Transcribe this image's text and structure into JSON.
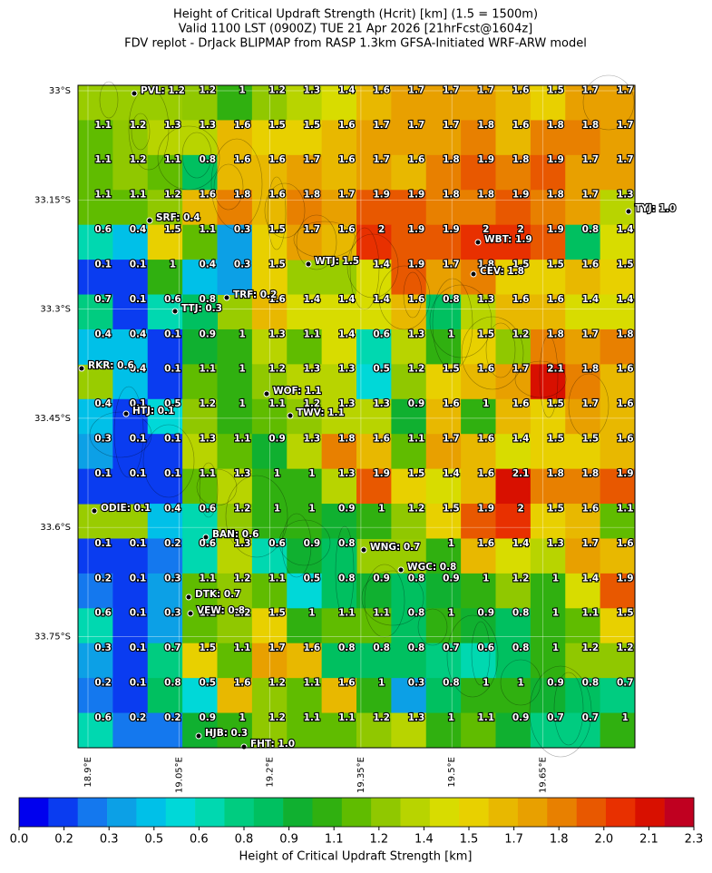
{
  "title_lines": [
    "Height of Critical Updraft Strength (Hcrit) [km] (1.5 = 1500m)",
    "Valid 1100 LST (0900Z) TUE 21 Apr 2026 [21hrFcst@1604z]",
    "FDV replot - DrJack BLIPMAP from RASP 1.3km GFSA-Initiated WRF-ARW model"
  ],
  "grid": [
    [
      null,
      null,
      null,
      1.2,
      1.0,
      1.2,
      1.3,
      1.4,
      1.6,
      1.7,
      1.7,
      1.7,
      1.6,
      1.5,
      1.7,
      1.7
    ],
    [
      1.1,
      1.2,
      1.3,
      1.3,
      1.6,
      1.5,
      1.5,
      1.6,
      1.7,
      1.7,
      1.7,
      1.8,
      1.6,
      1.8,
      1.8,
      1.7
    ],
    [
      1.1,
      1.2,
      1.1,
      0.8,
      1.6,
      1.6,
      1.7,
      1.6,
      1.7,
      1.6,
      1.8,
      1.9,
      1.8,
      1.9,
      1.7,
      1.7
    ],
    [
      1.1,
      1.1,
      1.2,
      1.6,
      1.8,
      1.6,
      1.8,
      1.7,
      1.9,
      1.9,
      1.8,
      1.8,
      1.9,
      1.8,
      1.7,
      1.3
    ],
    [
      0.6,
      0.4,
      1.5,
      1.1,
      0.3,
      1.5,
      1.7,
      1.6,
      2.0,
      1.9,
      1.9,
      2.0,
      2.0,
      1.9,
      0.8,
      1.4
    ],
    [
      0.1,
      0.1,
      1.0,
      0.4,
      0.3,
      1.5,
      null,
      null,
      1.4,
      1.9,
      1.7,
      1.8,
      1.5,
      1.5,
      1.6,
      1.5
    ],
    [
      0.7,
      0.1,
      0.6,
      0.8,
      null,
      1.6,
      1.4,
      1.4,
      1.4,
      1.6,
      0.8,
      1.3,
      1.6,
      1.6,
      1.4,
      1.4
    ],
    [
      0.4,
      0.4,
      0.1,
      0.9,
      1.0,
      1.3,
      1.1,
      1.4,
      0.6,
      1.3,
      1.0,
      1.5,
      1.2,
      1.8,
      1.7,
      1.8
    ],
    [
      null,
      0.4,
      0.1,
      1.1,
      1.0,
      1.2,
      1.3,
      1.3,
      0.5,
      1.2,
      1.5,
      1.6,
      1.7,
      2.1,
      1.8,
      1.6
    ],
    [
      0.4,
      0.1,
      0.5,
      1.2,
      1.0,
      1.1,
      1.2,
      1.3,
      1.3,
      0.9,
      1.6,
      1.0,
      1.6,
      1.5,
      1.7,
      1.6
    ],
    [
      0.3,
      0.1,
      0.1,
      1.3,
      1.1,
      0.9,
      1.3,
      1.8,
      1.6,
      1.1,
      1.7,
      1.6,
      1.4,
      1.5,
      1.5,
      1.6
    ],
    [
      0.1,
      0.1,
      0.1,
      1.1,
      1.3,
      1.0,
      1.0,
      1.3,
      1.9,
      1.5,
      1.4,
      1.6,
      2.1,
      1.8,
      1.8,
      1.9
    ],
    [
      null,
      null,
      0.4,
      0.6,
      1.2,
      1.0,
      1.0,
      0.9,
      1.0,
      1.2,
      1.5,
      1.9,
      2.0,
      1.5,
      1.6,
      1.1
    ],
    [
      0.1,
      0.1,
      0.2,
      0.6,
      1.3,
      0.6,
      0.9,
      0.8,
      null,
      null,
      1.0,
      1.6,
      1.4,
      1.3,
      1.7,
      1.6
    ],
    [
      0.2,
      0.1,
      0.3,
      1.1,
      1.2,
      1.1,
      0.5,
      0.8,
      0.9,
      0.8,
      0.9,
      1.0,
      1.2,
      1.0,
      1.4,
      1.9
    ],
    [
      0.6,
      0.1,
      0.3,
      1.1,
      1.2,
      1.5,
      1.0,
      1.1,
      1.1,
      0.8,
      1.0,
      0.9,
      0.8,
      1.0,
      1.1,
      1.5
    ],
    [
      0.3,
      0.1,
      0.7,
      1.5,
      1.1,
      1.7,
      1.6,
      0.8,
      0.8,
      0.8,
      0.7,
      0.6,
      0.8,
      1.0,
      1.2,
      1.2
    ],
    [
      0.2,
      0.1,
      0.8,
      0.5,
      1.6,
      1.2,
      1.1,
      1.6,
      1.0,
      0.3,
      0.8,
      1.0,
      1.0,
      0.9,
      0.8,
      0.7
    ],
    [
      0.6,
      0.2,
      0.2,
      0.9,
      1.0,
      1.2,
      1.1,
      1.1,
      1.2,
      1.3,
      1.0,
      1.1,
      0.9,
      0.7,
      0.7,
      1.0
    ]
  ],
  "stations": [
    {
      "label": "PVL: 1.2",
      "value": 1.2
    },
    {
      "label": "TYJ: 1.0",
      "value": 1.0
    },
    {
      "label": "SRF: 0.4",
      "value": 0.4
    },
    {
      "label": "WBT: 1.9",
      "value": 1.9
    },
    {
      "label": "WTJ: 1.5",
      "value": 1.5
    },
    {
      "label": "CEV: 1.8",
      "value": 1.8
    },
    {
      "label": "TRF: 0.2",
      "value": 0.2
    },
    {
      "label": "TTJ: 0.3",
      "value": 0.3
    },
    {
      "label": "RKR: 0.6",
      "value": 0.6
    },
    {
      "label": "WOF: 1.1",
      "value": 1.1
    },
    {
      "label": "HTJ: 0.1",
      "value": 0.1
    },
    {
      "label": "TWV: 1.1",
      "value": 1.1
    },
    {
      "label": "ODIE: 0.1",
      "value": 0.1
    },
    {
      "label": "BAN: 0.6",
      "value": 0.6
    },
    {
      "label": "WNG: 0.7",
      "value": 0.7
    },
    {
      "label": "WGC: 0.8",
      "value": 0.8
    },
    {
      "label": "DTK: 0.7",
      "value": 0.7
    },
    {
      "label": "VEW: 0.8",
      "value": 0.8
    },
    {
      "label": "HJB: 0.3",
      "value": 0.3
    },
    {
      "label": "FHT: 1.0",
      "value": 1.0
    }
  ],
  "lat_labels": [
    {
      "value": -33.0,
      "label": "33°S"
    },
    {
      "value": -33.15,
      "label": "33.15°S"
    },
    {
      "value": -33.3,
      "label": "33.3°S"
    },
    {
      "value": -33.45,
      "label": "33.45°S"
    },
    {
      "value": -33.6,
      "label": "33.6°S"
    },
    {
      "value": -33.75,
      "label": "33.75°S"
    }
  ],
  "lon_labels": [
    {
      "value": 18.9,
      "label": "18.9°E"
    },
    {
      "value": 19.05,
      "label": "19.05°E"
    },
    {
      "value": 19.2,
      "label": "19.2°E"
    },
    {
      "value": 19.35,
      "label": "19.35°E"
    },
    {
      "value": 19.5,
      "label": "19.5°E"
    },
    {
      "value": 19.65,
      "label": "19.65°E"
    }
  ],
  "colorbar": {
    "label": "Height of Critical Updraft Strength [km]",
    "lim": [
      0,
      2.3
    ],
    "colors": [
      "#0000ee",
      "#0a3cf0",
      "#1478ee",
      "#0ca0e6",
      "#00c0e8",
      "#00d8d8",
      "#00d8b0",
      "#00cc80",
      "#00c060",
      "#10b030",
      "#30b010",
      "#60bc00",
      "#90c800",
      "#b8d400",
      "#d8dc00",
      "#e8d000",
      "#e8b800",
      "#e8a000",
      "#e88000",
      "#e85800",
      "#e83000",
      "#d81000",
      "#c00020"
    ],
    "ticks": [
      {
        "value": 0,
        "label": "0.0"
      },
      {
        "value": 0.1533,
        "label": "0.2"
      },
      {
        "value": 0.3067,
        "label": "0.3"
      },
      {
        "value": 0.46,
        "label": "0.5"
      },
      {
        "value": 0.6133,
        "label": "0.6"
      },
      {
        "value": 0.7667,
        "label": "0.8"
      },
      {
        "value": 0.92,
        "label": "0.9"
      },
      {
        "value": 1.0733,
        "label": "1.1"
      },
      {
        "value": 1.2267,
        "label": "1.2"
      },
      {
        "value": 1.38,
        "label": "1.4"
      },
      {
        "value": 1.5333,
        "label": "1.5"
      },
      {
        "value": 1.6867,
        "label": "1.7"
      },
      {
        "value": 1.84,
        "label": "1.8"
      },
      {
        "value": 1.9933,
        "label": "2.0"
      },
      {
        "value": 2.1467,
        "label": "2.1"
      },
      {
        "value": 2.3,
        "label": "2.3"
      }
    ]
  }
}
